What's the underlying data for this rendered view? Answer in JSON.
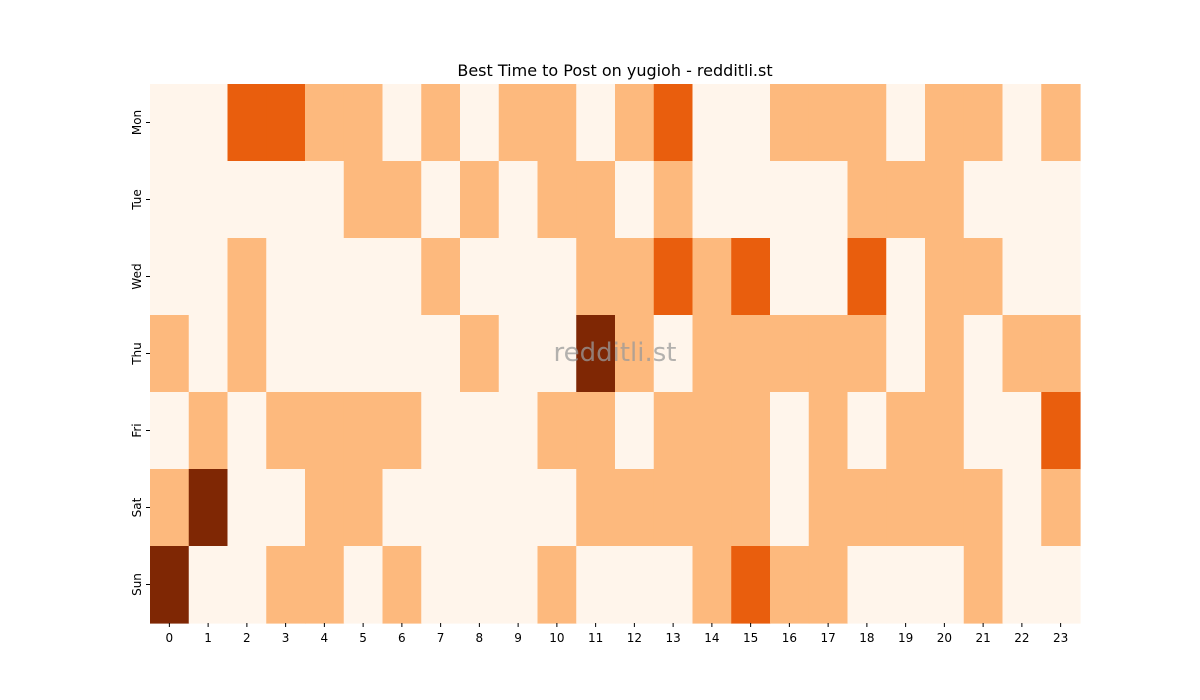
{
  "chart_data": {
    "type": "heatmap",
    "title": "Best Time to Post on yugioh - redditli.st",
    "watermark": "redditli.st",
    "xlabel": "",
    "ylabel": "",
    "x": [
      "0",
      "1",
      "2",
      "3",
      "4",
      "5",
      "6",
      "7",
      "8",
      "9",
      "10",
      "11",
      "12",
      "13",
      "14",
      "15",
      "16",
      "17",
      "18",
      "19",
      "20",
      "21",
      "22",
      "23"
    ],
    "y": [
      "Mon",
      "Tue",
      "Wed",
      "Thu",
      "Fri",
      "Sat",
      "Sun"
    ],
    "levels": [
      0,
      1,
      2,
      3
    ],
    "colors": [
      "#fff5eb",
      "#fdb97d",
      "#e95e0d",
      "#7f2704"
    ],
    "values": [
      [
        0,
        0,
        2,
        2,
        1,
        1,
        0,
        1,
        0,
        1,
        1,
        0,
        1,
        2,
        0,
        0,
        1,
        1,
        1,
        0,
        1,
        1,
        0,
        1
      ],
      [
        0,
        0,
        0,
        0,
        0,
        1,
        1,
        0,
        1,
        0,
        1,
        1,
        0,
        1,
        0,
        0,
        0,
        0,
        1,
        1,
        1,
        0,
        0,
        0
      ],
      [
        0,
        0,
        1,
        0,
        0,
        0,
        0,
        1,
        0,
        0,
        0,
        1,
        1,
        2,
        1,
        2,
        0,
        0,
        2,
        0,
        1,
        1,
        0,
        0
      ],
      [
        1,
        0,
        1,
        0,
        0,
        0,
        0,
        0,
        1,
        0,
        0,
        3,
        1,
        0,
        1,
        1,
        1,
        1,
        1,
        0,
        1,
        0,
        1,
        1
      ],
      [
        0,
        1,
        0,
        1,
        1,
        1,
        1,
        0,
        0,
        0,
        1,
        1,
        0,
        1,
        1,
        1,
        0,
        1,
        0,
        1,
        1,
        0,
        0,
        2
      ],
      [
        1,
        3,
        0,
        0,
        1,
        1,
        0,
        0,
        0,
        0,
        0,
        1,
        1,
        1,
        1,
        1,
        0,
        1,
        1,
        1,
        1,
        1,
        0,
        1
      ],
      [
        3,
        0,
        0,
        1,
        1,
        0,
        1,
        0,
        0,
        0,
        1,
        0,
        0,
        0,
        1,
        2,
        1,
        1,
        0,
        0,
        0,
        1,
        0,
        0
      ]
    ],
    "grid": false,
    "legend": "none"
  }
}
